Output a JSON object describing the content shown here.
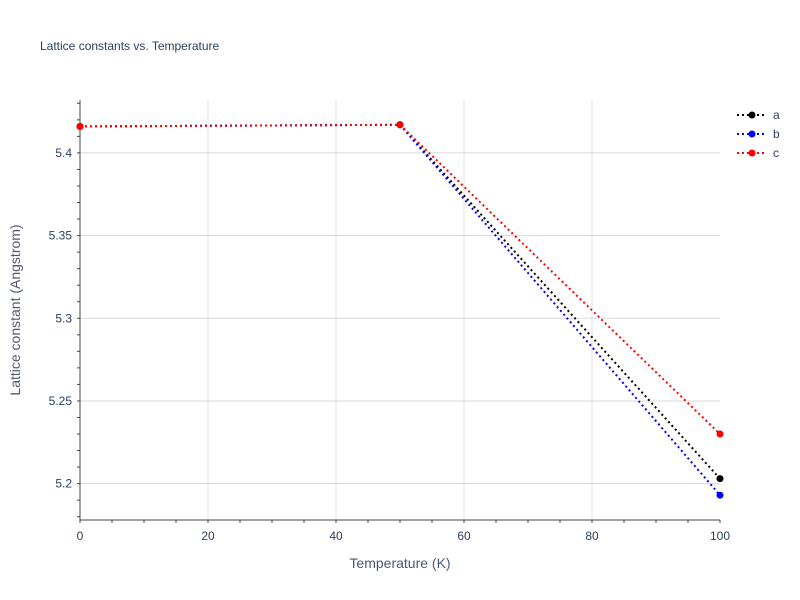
{
  "chart_data": {
    "type": "line",
    "title": "Lattice constants vs. Temperature",
    "xlabel": "Temperature (K)",
    "ylabel": "Lattice constant (Angstrom)",
    "xlim": [
      0,
      100
    ],
    "ylim": [
      5.178,
      5.432
    ],
    "x_ticks": [
      0,
      20,
      40,
      60,
      80,
      100
    ],
    "y_ticks": [
      5.2,
      5.25,
      5.3,
      5.35,
      5.4
    ],
    "grid": true,
    "legend_position": "top-right",
    "line_style": "dotted",
    "series": [
      {
        "name": "a",
        "color": "#000000",
        "x": [
          0,
          50,
          100
        ],
        "y": [
          5.416,
          5.417,
          5.203
        ]
      },
      {
        "name": "b",
        "color": "#0000ff",
        "x": [
          0,
          50,
          100
        ],
        "y": [
          5.416,
          5.417,
          5.193
        ]
      },
      {
        "name": "c",
        "color": "#ff0000",
        "x": [
          0,
          50,
          100
        ],
        "y": [
          5.416,
          5.417,
          5.23
        ]
      }
    ]
  }
}
